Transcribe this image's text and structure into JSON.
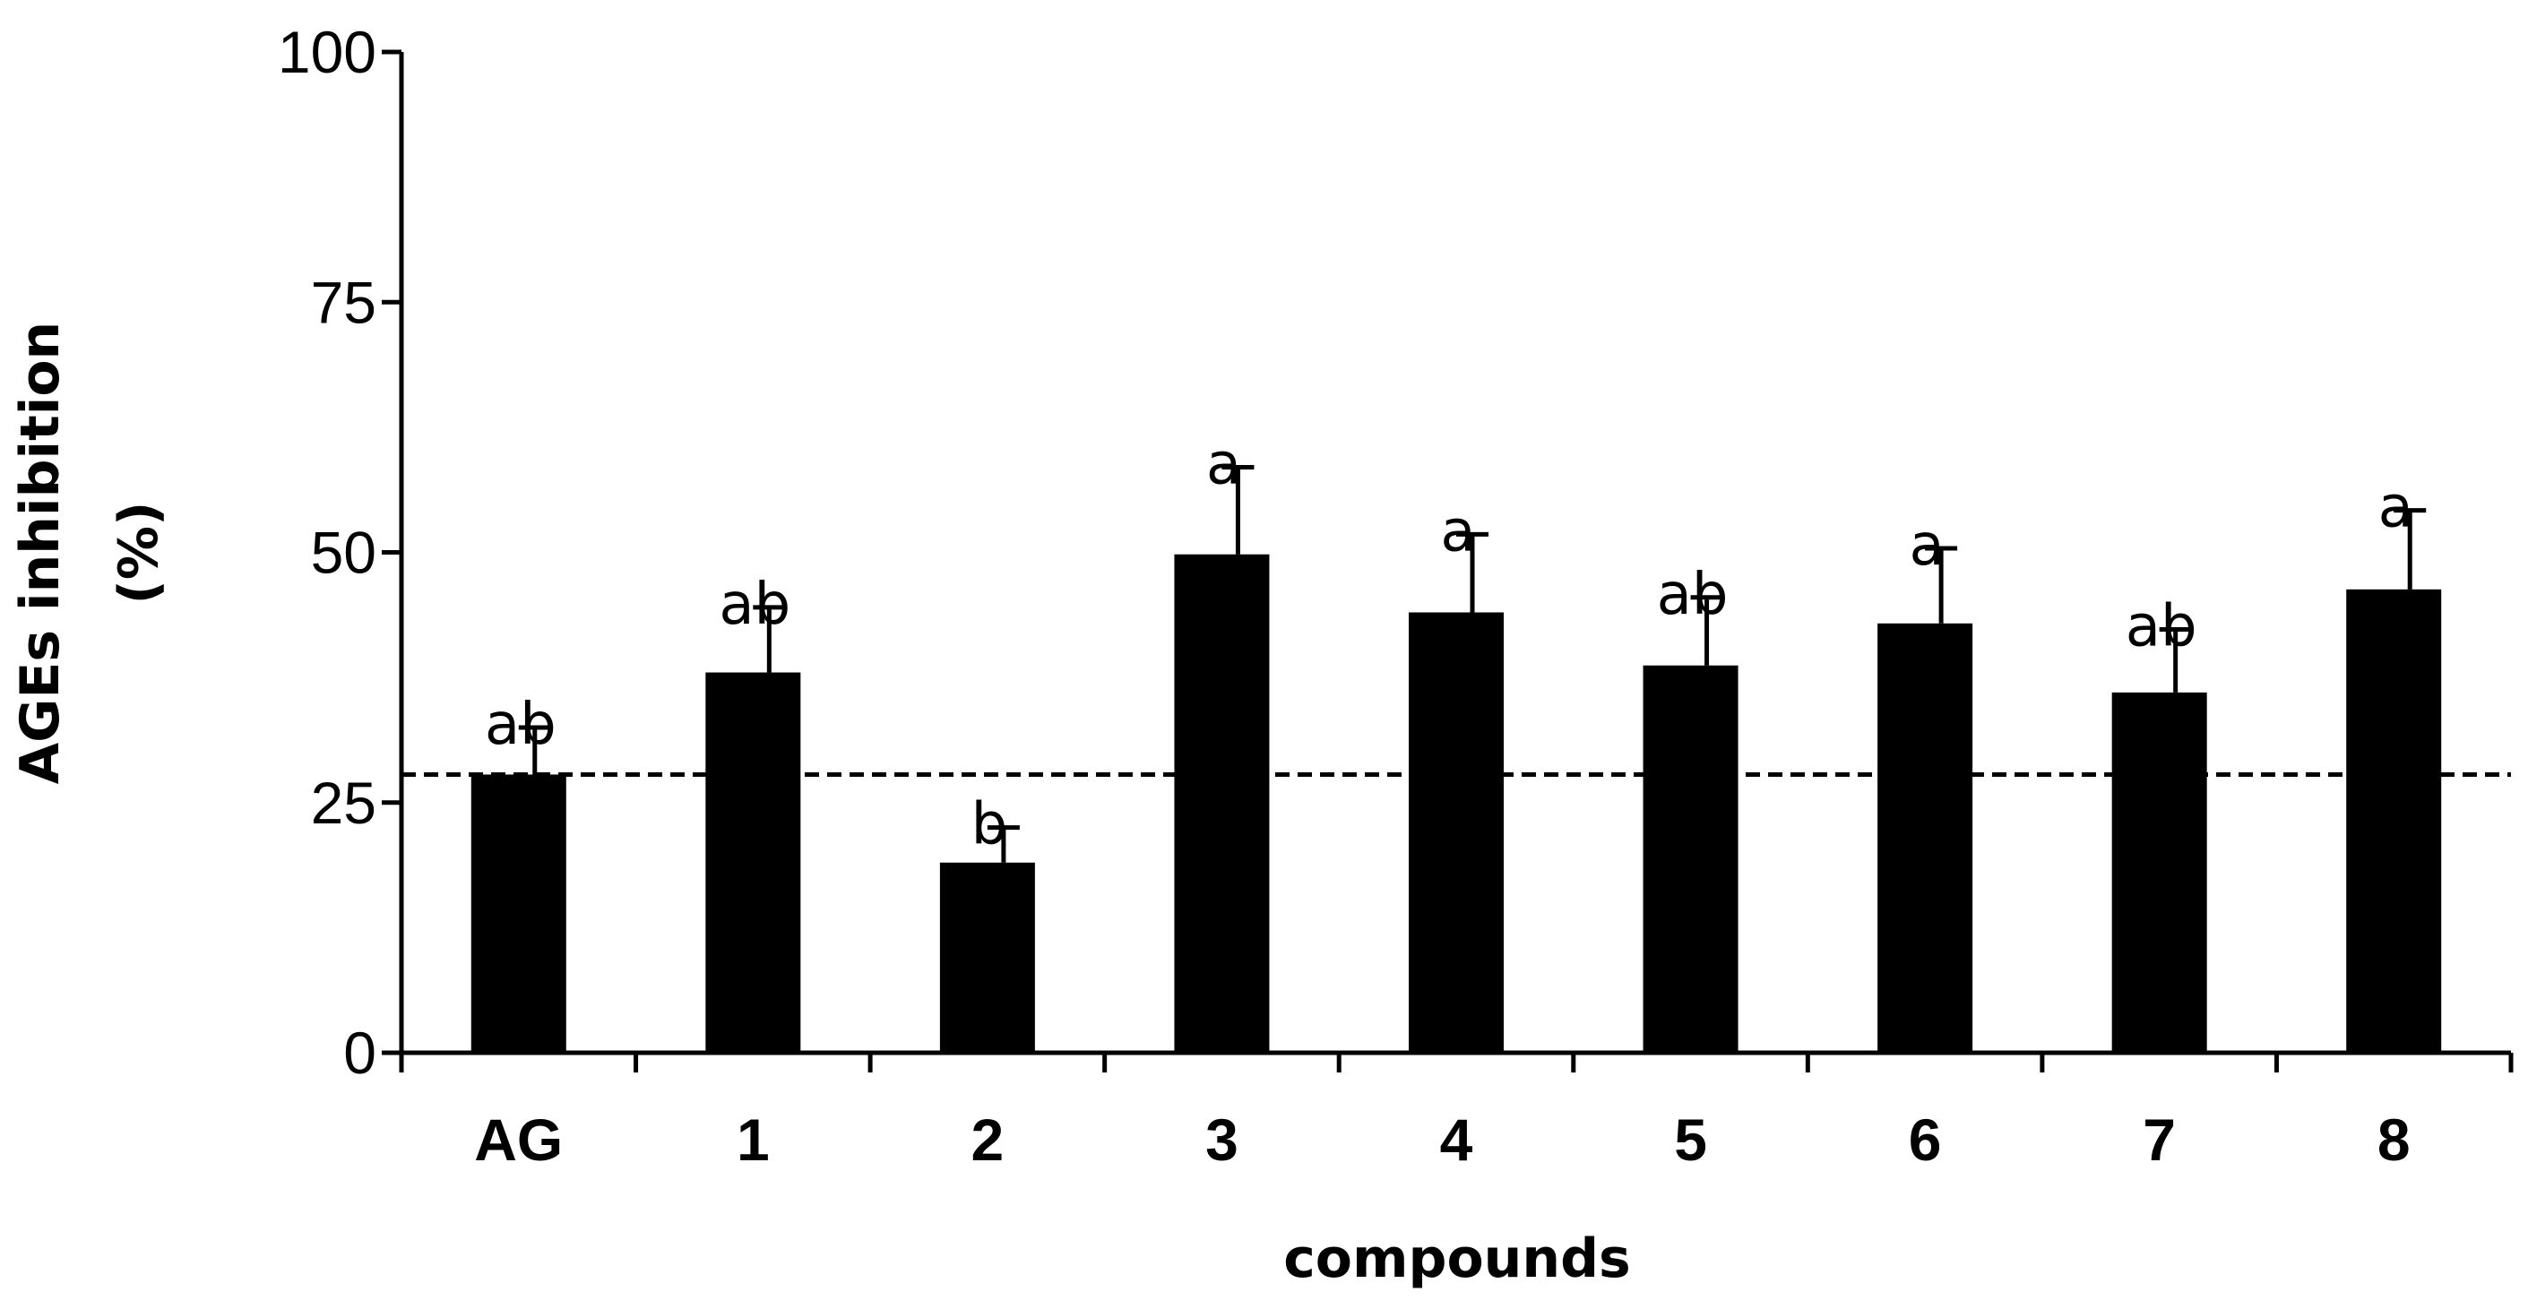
{
  "chart_data": {
    "type": "bar",
    "categories": [
      "AG",
      "1",
      "2",
      "3",
      "4",
      "5",
      "6",
      "7",
      "8"
    ],
    "values": [
      27.8,
      38.0,
      19.0,
      49.8,
      44.0,
      38.7,
      42.9,
      36.0,
      46.3
    ],
    "error_upper": [
      32.5,
      44.5,
      22.5,
      58.5,
      51.8,
      45.5,
      50.4,
      42.3,
      54.2
    ],
    "significance_letters": [
      "ab",
      "ab",
      "b",
      "a",
      "a",
      "ab",
      "a",
      "ab",
      "a"
    ],
    "reference_line": 27.8,
    "xlabel": "compounds",
    "ylabel_line1": "AGEs inhibition",
    "ylabel_line2": "(%)",
    "ylim": [
      0,
      100
    ],
    "yticks": [
      "0",
      "25",
      "50",
      "75",
      "100"
    ],
    "grid": false,
    "bar_color": "#000000"
  }
}
